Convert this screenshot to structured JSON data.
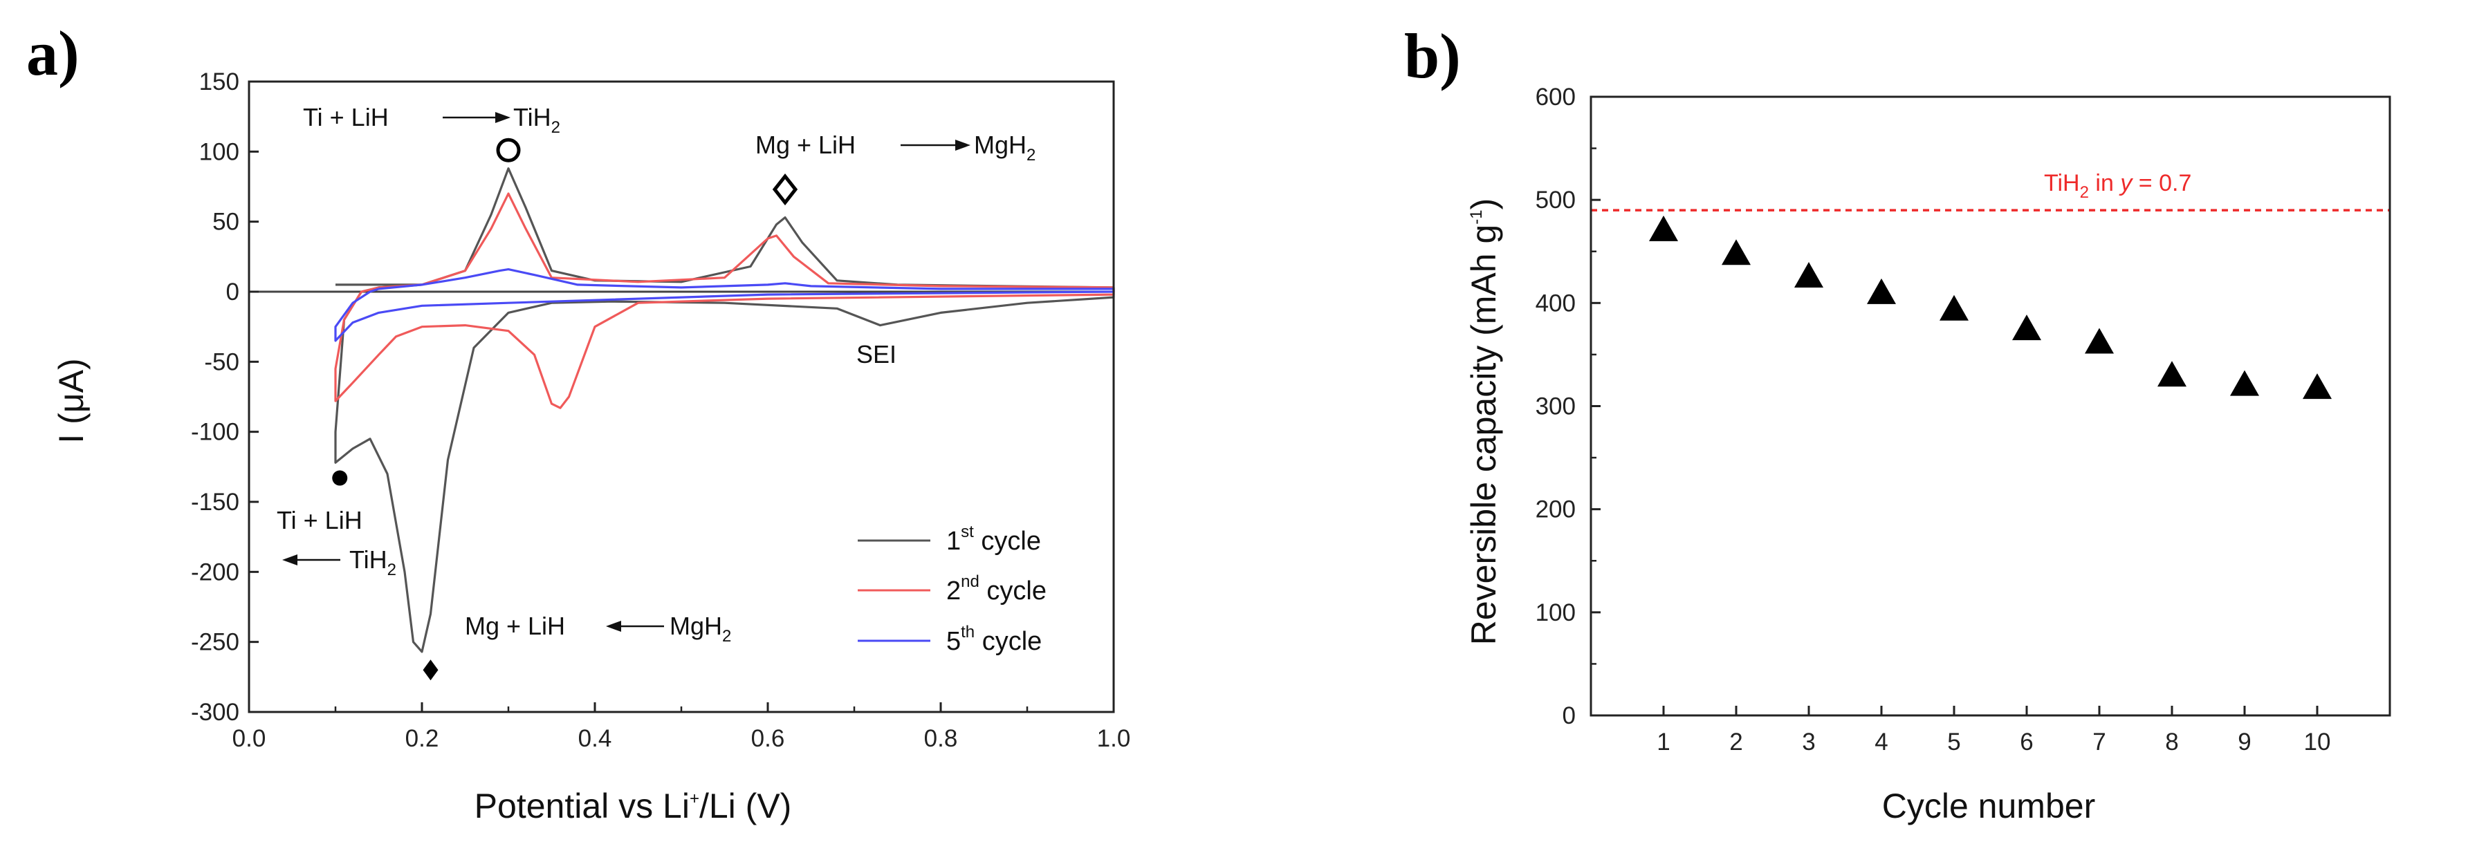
{
  "panels": {
    "a_label": "a)",
    "b_label": "b)"
  },
  "colors": {
    "cycle1": "#555555",
    "cycle2": "#f05a5a",
    "cycle5": "#4a4af5",
    "reference": "#ee2a2a",
    "markers": "#000000"
  },
  "chart_data": [
    {
      "type": "line",
      "panel": "a",
      "xlabel": {
        "base": "Potential vs Li",
        "sup": "+",
        "tail": "/Li (V)"
      },
      "ylabel": "I (μA)",
      "xlim": [
        0.0,
        1.0
      ],
      "ylim": [
        -300,
        150
      ],
      "x_ticks": [
        "0.0",
        "0.2",
        "0.4",
        "0.6",
        "0.8",
        "1.0"
      ],
      "y_ticks": [
        "150",
        "100",
        "50",
        "0",
        "-50",
        "-100",
        "-150",
        "-200",
        "-250",
        "-300"
      ],
      "zero_line": true,
      "legend_position": "bottom-right",
      "series": [
        {
          "name": "1st cycle",
          "legend": {
            "base": "1",
            "sup": "st",
            "tail": " cycle"
          },
          "color": "#555555",
          "points": [
            [
              0.1,
              5
            ],
            [
              0.2,
              5
            ],
            [
              0.25,
              15
            ],
            [
              0.28,
              55
            ],
            [
              0.3,
              88
            ],
            [
              0.32,
              60
            ],
            [
              0.35,
              15
            ],
            [
              0.4,
              8
            ],
            [
              0.5,
              7
            ],
            [
              0.58,
              18
            ],
            [
              0.61,
              48
            ],
            [
              0.62,
              53
            ],
            [
              0.64,
              35
            ],
            [
              0.68,
              8
            ],
            [
              0.75,
              5
            ],
            [
              1.0,
              3
            ],
            [
              1.0,
              -4
            ],
            [
              0.9,
              -8
            ],
            [
              0.8,
              -15
            ],
            [
              0.73,
              -24
            ],
            [
              0.68,
              -12
            ],
            [
              0.55,
              -8
            ],
            [
              0.42,
              -7
            ],
            [
              0.35,
              -8
            ],
            [
              0.3,
              -15
            ],
            [
              0.26,
              -40
            ],
            [
              0.23,
              -120
            ],
            [
              0.21,
              -230
            ],
            [
              0.2,
              -257
            ],
            [
              0.19,
              -250
            ],
            [
              0.18,
              -200
            ],
            [
              0.16,
              -130
            ],
            [
              0.14,
              -105
            ],
            [
              0.12,
              -112
            ],
            [
              0.1,
              -122
            ],
            [
              0.1,
              -100
            ],
            [
              0.11,
              -20
            ],
            [
              0.13,
              0
            ],
            [
              0.15,
              3
            ],
            [
              0.18,
              4
            ],
            [
              0.2,
              5
            ]
          ]
        },
        {
          "name": "2nd cycle",
          "legend": {
            "base": "2",
            "sup": "nd",
            "tail": " cycle"
          },
          "color": "#f05a5a",
          "points": [
            [
              0.15,
              3
            ],
            [
              0.2,
              5
            ],
            [
              0.25,
              15
            ],
            [
              0.28,
              45
            ],
            [
              0.3,
              70
            ],
            [
              0.32,
              45
            ],
            [
              0.35,
              10
            ],
            [
              0.45,
              7
            ],
            [
              0.55,
              10
            ],
            [
              0.6,
              38
            ],
            [
              0.61,
              40
            ],
            [
              0.63,
              25
            ],
            [
              0.67,
              6
            ],
            [
              0.8,
              4
            ],
            [
              1.0,
              3
            ],
            [
              1.0,
              -2
            ],
            [
              0.6,
              -5
            ],
            [
              0.45,
              -8
            ],
            [
              0.4,
              -25
            ],
            [
              0.37,
              -75
            ],
            [
              0.36,
              -83
            ],
            [
              0.35,
              -80
            ],
            [
              0.33,
              -45
            ],
            [
              0.3,
              -28
            ],
            [
              0.25,
              -24
            ],
            [
              0.2,
              -25
            ],
            [
              0.17,
              -32
            ],
            [
              0.15,
              -45
            ],
            [
              0.12,
              -65
            ],
            [
              0.1,
              -78
            ],
            [
              0.1,
              -55
            ],
            [
              0.11,
              -20
            ],
            [
              0.13,
              0
            ],
            [
              0.15,
              3
            ]
          ]
        },
        {
          "name": "5th cycle",
          "legend": {
            "base": "5",
            "sup": "th",
            "tail": " cycle"
          },
          "color": "#4a4af5",
          "points": [
            [
              0.15,
              2
            ],
            [
              0.2,
              5
            ],
            [
              0.25,
              10
            ],
            [
              0.29,
              15
            ],
            [
              0.3,
              16
            ],
            [
              0.33,
              12
            ],
            [
              0.38,
              5
            ],
            [
              0.5,
              3
            ],
            [
              0.6,
              5
            ],
            [
              0.62,
              6
            ],
            [
              0.65,
              4
            ],
            [
              0.8,
              2
            ],
            [
              1.0,
              2
            ],
            [
              1.0,
              0
            ],
            [
              0.6,
              -2
            ],
            [
              0.4,
              -6
            ],
            [
              0.3,
              -8
            ],
            [
              0.2,
              -10
            ],
            [
              0.15,
              -15
            ],
            [
              0.12,
              -22
            ],
            [
              0.1,
              -35
            ],
            [
              0.1,
              -25
            ],
            [
              0.12,
              -8
            ],
            [
              0.14,
              0
            ],
            [
              0.15,
              2
            ]
          ]
        }
      ],
      "markers": [
        {
          "name": "open-circle-marker",
          "shape": "open-circle",
          "x": 0.3,
          "y": 101
        },
        {
          "name": "open-diamond-marker",
          "shape": "open-diamond",
          "x": 0.62,
          "y": 73
        },
        {
          "name": "filled-circle-marker",
          "shape": "filled-circle",
          "x": 0.105,
          "y": -133
        },
        {
          "name": "filled-diamond-marker",
          "shape": "filled-diamond",
          "x": 0.21,
          "y": -270
        }
      ],
      "annotations": {
        "ti_oxidation": {
          "left": "Ti + LiH",
          "arrow": "→",
          "product": "TiH",
          "sub": "2"
        },
        "mg_oxidation": {
          "left": "Mg + LiH",
          "arrow": "→",
          "product": "MgH",
          "sub": "2"
        },
        "ti_reduction_top": "Ti + LiH",
        "ti_reduction_bottom": {
          "arrow": "←",
          "product": "TiH",
          "sub": "2"
        },
        "mg_reduction": {
          "left": "Mg + LiH",
          "arrow": "←",
          "product": "MgH",
          "sub": "2"
        },
        "sei": "SEI"
      }
    },
    {
      "type": "scatter",
      "panel": "b",
      "xlabel": "Cycle number",
      "ylabel": {
        "base": "Reversible capacity (mAh g",
        "sup": "-1",
        "tail": ")"
      },
      "xlim": [
        0,
        11
      ],
      "ylim": [
        0,
        600
      ],
      "x_ticks": [
        "1",
        "2",
        "3",
        "4",
        "5",
        "6",
        "7",
        "8",
        "9",
        "10"
      ],
      "y_ticks": [
        "600",
        "500",
        "400",
        "300",
        "200",
        "100",
        "0"
      ],
      "marker": "filled-triangle",
      "x": [
        1,
        2,
        3,
        4,
        5,
        6,
        7,
        8,
        9,
        10
      ],
      "values": [
        470,
        447,
        425,
        409,
        393,
        374,
        361,
        329,
        320,
        317
      ],
      "reference_line": {
        "y": 490,
        "label": {
          "base": "TiH",
          "sub": "2",
          "mid": " in ",
          "var": "y",
          "tail": " = 0.7"
        }
      }
    }
  ]
}
